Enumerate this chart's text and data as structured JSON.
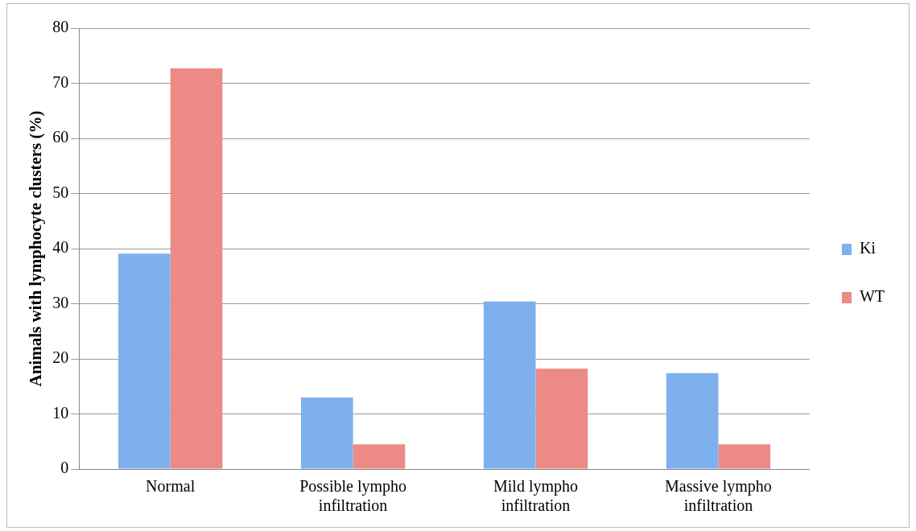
{
  "chart_data": {
    "type": "bar",
    "ylabel": "Animals with lymphocyte clusters (%)",
    "categories": [
      "Normal",
      "Possible lympho infiltration",
      "Mild lympho infiltration",
      "Massive lympho infiltration"
    ],
    "series": [
      {
        "name": "Ki",
        "color": "#7fb0ee",
        "values": [
          39.1,
          13.0,
          30.4,
          17.4
        ]
      },
      {
        "name": "WT",
        "color": "#ec8a86",
        "values": [
          72.7,
          4.5,
          18.2,
          4.5
        ]
      }
    ],
    "ylim": [
      0,
      80
    ],
    "yticks": [
      0,
      10,
      20,
      30,
      40,
      50,
      60,
      70,
      80
    ],
    "grid": "y",
    "legend": "right"
  }
}
